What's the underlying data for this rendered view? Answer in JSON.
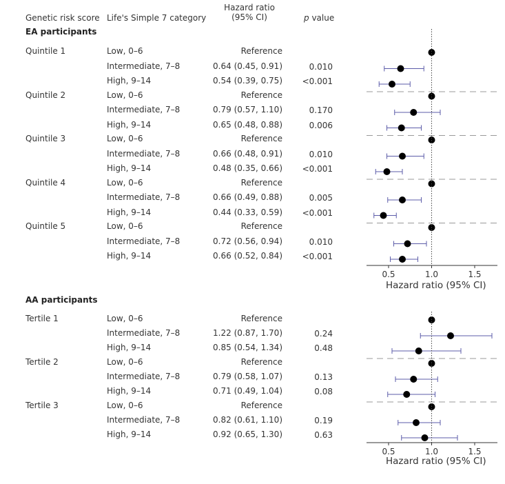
{
  "headers": {
    "grs": "Genetic risk score",
    "ls7": "Life's Simple 7 category",
    "hr_line1": "Hazard ratio",
    "hr_line2": "(95% CI)",
    "p_italic": "p",
    "p_rest": " value"
  },
  "sections": [
    {
      "title": "EA participants",
      "groups": [
        {
          "label": "Quintile 1",
          "rows": [
            {
              "category": "Low, 0–6",
              "ci_text": "Reference",
              "p": ""
            },
            {
              "category": "Intermediate, 7–8",
              "ci_text": "0.64 (0.45, 0.91)",
              "p": "0.010"
            },
            {
              "category": "High, 9–14",
              "ci_text": "0.54 (0.39, 0.75)",
              "p": "<0.001"
            }
          ]
        },
        {
          "label": "Quintile 2",
          "rows": [
            {
              "category": "Low, 0–6",
              "ci_text": "Reference",
              "p": ""
            },
            {
              "category": "Intermediate, 7–8",
              "ci_text": "0.79 (0.57, 1.10)",
              "p": "0.170"
            },
            {
              "category": "High, 9–14",
              "ci_text": "0.65 (0.48, 0.88)",
              "p": "0.006"
            }
          ]
        },
        {
          "label": "Quintile 3",
          "rows": [
            {
              "category": "Low, 0–6",
              "ci_text": "Reference",
              "p": ""
            },
            {
              "category": "Intermediate, 7–8",
              "ci_text": "0.66 (0.48, 0.91)",
              "p": "0.010"
            },
            {
              "category": "High, 9–14",
              "ci_text": "0.48 (0.35, 0.66)",
              "p": "<0.001"
            }
          ]
        },
        {
          "label": "Quintile 4",
          "rows": [
            {
              "category": "Low, 0–6",
              "ci_text": "Reference",
              "p": ""
            },
            {
              "category": "Intermediate, 7–8",
              "ci_text": "0.66 (0.49, 0.88)",
              "p": "0.005"
            },
            {
              "category": "High, 9–14",
              "ci_text": "0.44 (0.33, 0.59)",
              "p": "<0.001"
            }
          ]
        },
        {
          "label": "Quintile 5",
          "rows": [
            {
              "category": "Low, 0–6",
              "ci_text": "Reference",
              "p": ""
            },
            {
              "category": "Intermediate, 7–8",
              "ci_text": "0.72 (0.56, 0.94)",
              "p": "0.010"
            },
            {
              "category": "High, 9–14",
              "ci_text": "0.66 (0.52, 0.84)",
              "p": "<0.001"
            }
          ]
        }
      ]
    },
    {
      "title": "AA participants",
      "groups": [
        {
          "label": "Tertile 1",
          "rows": [
            {
              "category": "Low, 0–6",
              "ci_text": "Reference",
              "p": ""
            },
            {
              "category": "Intermediate, 7–8",
              "ci_text": "1.22 (0.87, 1.70)",
              "p": "0.24"
            },
            {
              "category": "High, 9–14",
              "ci_text": "0.85 (0.54, 1.34)",
              "p": "0.48"
            }
          ]
        },
        {
          "label": "Tertile 2",
          "rows": [
            {
              "category": "Low, 0–6",
              "ci_text": "Reference",
              "p": ""
            },
            {
              "category": "Intermediate, 7–8",
              "ci_text": "0.79 (0.58, 1.07)",
              "p": "0.13"
            },
            {
              "category": "High, 9–14",
              "ci_text": "0.71 (0.49, 1.04)",
              "p": "0.08"
            }
          ]
        },
        {
          "label": "Tertile 3",
          "rows": [
            {
              "category": "Low, 0–6",
              "ci_text": "Reference",
              "p": ""
            },
            {
              "category": "Intermediate, 7–8",
              "ci_text": "0.82 (0.61, 1.10)",
              "p": "0.19"
            },
            {
              "category": "High, 9–14",
              "ci_text": "0.92 (0.65, 1.30)",
              "p": "0.63"
            }
          ]
        }
      ]
    }
  ],
  "chart_data": {
    "type": "forest",
    "x_axis_title": "Hazard ratio (95% CI)",
    "x_ticks": [
      0.5,
      1.0,
      1.5
    ],
    "x_tick_labels": [
      "0.5",
      "1.0",
      "1.5"
    ],
    "reference_line": 1.0,
    "panels": [
      {
        "name": "EA participants",
        "points": [
          {
            "group": "Quintile 1",
            "category": "Low, 0–6",
            "hr": 1.0,
            "lo": null,
            "hi": null
          },
          {
            "group": "Quintile 1",
            "category": "Intermediate, 7–8",
            "hr": 0.64,
            "lo": 0.45,
            "hi": 0.91
          },
          {
            "group": "Quintile 1",
            "category": "High, 9–14",
            "hr": 0.54,
            "lo": 0.39,
            "hi": 0.75
          },
          {
            "group": "Quintile 2",
            "category": "Low, 0–6",
            "hr": 1.0,
            "lo": null,
            "hi": null
          },
          {
            "group": "Quintile 2",
            "category": "Intermediate, 7–8",
            "hr": 0.79,
            "lo": 0.57,
            "hi": 1.1
          },
          {
            "group": "Quintile 2",
            "category": "High, 9–14",
            "hr": 0.65,
            "lo": 0.48,
            "hi": 0.88
          },
          {
            "group": "Quintile 3",
            "category": "Low, 0–6",
            "hr": 1.0,
            "lo": null,
            "hi": null
          },
          {
            "group": "Quintile 3",
            "category": "Intermediate, 7–8",
            "hr": 0.66,
            "lo": 0.48,
            "hi": 0.91
          },
          {
            "group": "Quintile 3",
            "category": "High, 9–14",
            "hr": 0.48,
            "lo": 0.35,
            "hi": 0.66
          },
          {
            "group": "Quintile 4",
            "category": "Low, 0–6",
            "hr": 1.0,
            "lo": null,
            "hi": null
          },
          {
            "group": "Quintile 4",
            "category": "Intermediate, 7–8",
            "hr": 0.66,
            "lo": 0.49,
            "hi": 0.88
          },
          {
            "group": "Quintile 4",
            "category": "High, 9–14",
            "hr": 0.44,
            "lo": 0.33,
            "hi": 0.59
          },
          {
            "group": "Quintile 5",
            "category": "Low, 0–6",
            "hr": 1.0,
            "lo": null,
            "hi": null
          },
          {
            "group": "Quintile 5",
            "category": "Intermediate, 7–8",
            "hr": 0.72,
            "lo": 0.56,
            "hi": 0.94
          },
          {
            "group": "Quintile 5",
            "category": "High, 9–14",
            "hr": 0.66,
            "lo": 0.52,
            "hi": 0.84
          }
        ]
      },
      {
        "name": "AA participants",
        "points": [
          {
            "group": "Tertile 1",
            "category": "Low, 0–6",
            "hr": 1.0,
            "lo": null,
            "hi": null
          },
          {
            "group": "Tertile 1",
            "category": "Intermediate, 7–8",
            "hr": 1.22,
            "lo": 0.87,
            "hi": 1.7
          },
          {
            "group": "Tertile 1",
            "category": "High, 9–14",
            "hr": 0.85,
            "lo": 0.54,
            "hi": 1.34
          },
          {
            "group": "Tertile 2",
            "category": "Low, 0–6",
            "hr": 1.0,
            "lo": null,
            "hi": null
          },
          {
            "group": "Tertile 2",
            "category": "Intermediate, 7–8",
            "hr": 0.79,
            "lo": 0.58,
            "hi": 1.07
          },
          {
            "group": "Tertile 2",
            "category": "High, 9–14",
            "hr": 0.71,
            "lo": 0.49,
            "hi": 1.04
          },
          {
            "group": "Tertile 3",
            "category": "Low, 0–6",
            "hr": 1.0,
            "lo": null,
            "hi": null
          },
          {
            "group": "Tertile 3",
            "category": "Intermediate, 7–8",
            "hr": 0.82,
            "lo": 0.61,
            "hi": 1.1
          },
          {
            "group": "Tertile 3",
            "category": "High, 9–14",
            "hr": 0.92,
            "lo": 0.65,
            "hi": 1.3
          }
        ]
      }
    ],
    "colors": {
      "ci_line": "#5b5ba8",
      "point": "#000000",
      "separator": "#999999",
      "axis": "#333333"
    }
  }
}
